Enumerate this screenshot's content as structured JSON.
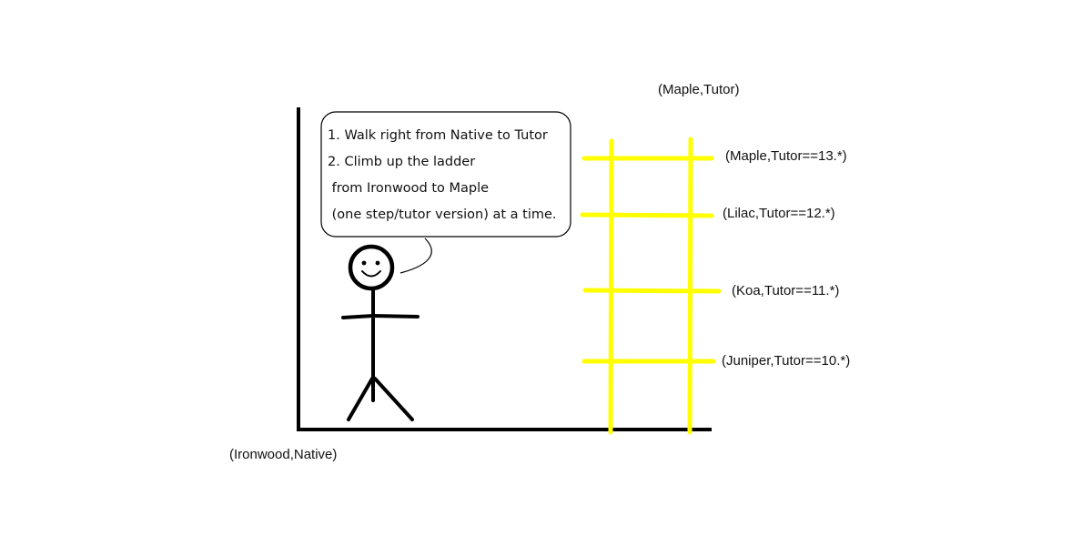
{
  "corner_labels": {
    "origin": "(Ironwood,Native)",
    "top": "(Maple,Tutor)"
  },
  "speech_bubble": {
    "lines": [
      "1. Walk right from Native to Tutor",
      "2. Climb up the ladder",
      " from Ironwood to Maple",
      " (one step/tutor version) at a time."
    ]
  },
  "ladder": {
    "color": "#ffff00",
    "rungs": [
      "(Maple,Tutor==13.*)",
      "(Lilac,Tutor==12.*)",
      "(Koa,Tutor==11.*)",
      "(Juniper,Tutor==10.*)"
    ]
  },
  "colors": {
    "ink": "#000000",
    "ladder": "#ffff00",
    "background": "#ffffff"
  },
  "icons": [
    "stick-figure-icon",
    "smiley-face-icon"
  ]
}
